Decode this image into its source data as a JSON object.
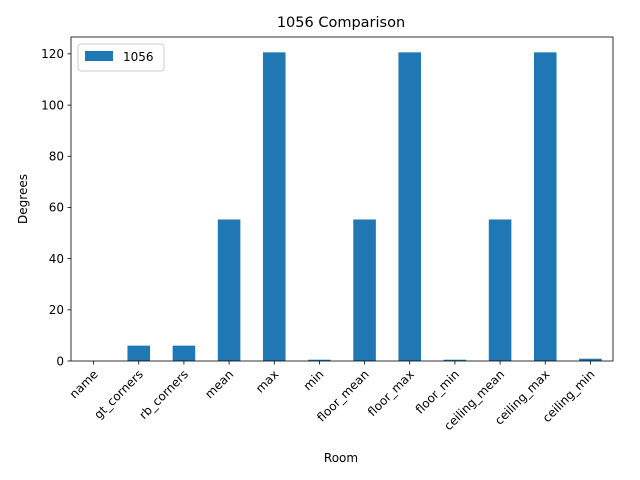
{
  "chart_data": {
    "type": "bar",
    "title": "1056 Comparison",
    "xlabel": "Room",
    "ylabel": "Degrees",
    "categories": [
      "name",
      "gt_corners",
      "rb_corners",
      "mean",
      "max",
      "min",
      "floor_mean",
      "floor_max",
      "floor_min",
      "ceiling_mean",
      "ceiling_max",
      "ceiling_min"
    ],
    "series": [
      {
        "name": "1056",
        "color": "#1f77b4",
        "values": [
          0,
          6,
          6,
          55.3,
          120.6,
          0.5,
          55.3,
          120.6,
          0.5,
          55.3,
          120.6,
          0.9
        ]
      }
    ],
    "ylim": [
      0,
      126.6
    ],
    "yticks": [
      0,
      20,
      40,
      60,
      80,
      100,
      120
    ],
    "grid": false,
    "legend_position": "upper-left"
  }
}
